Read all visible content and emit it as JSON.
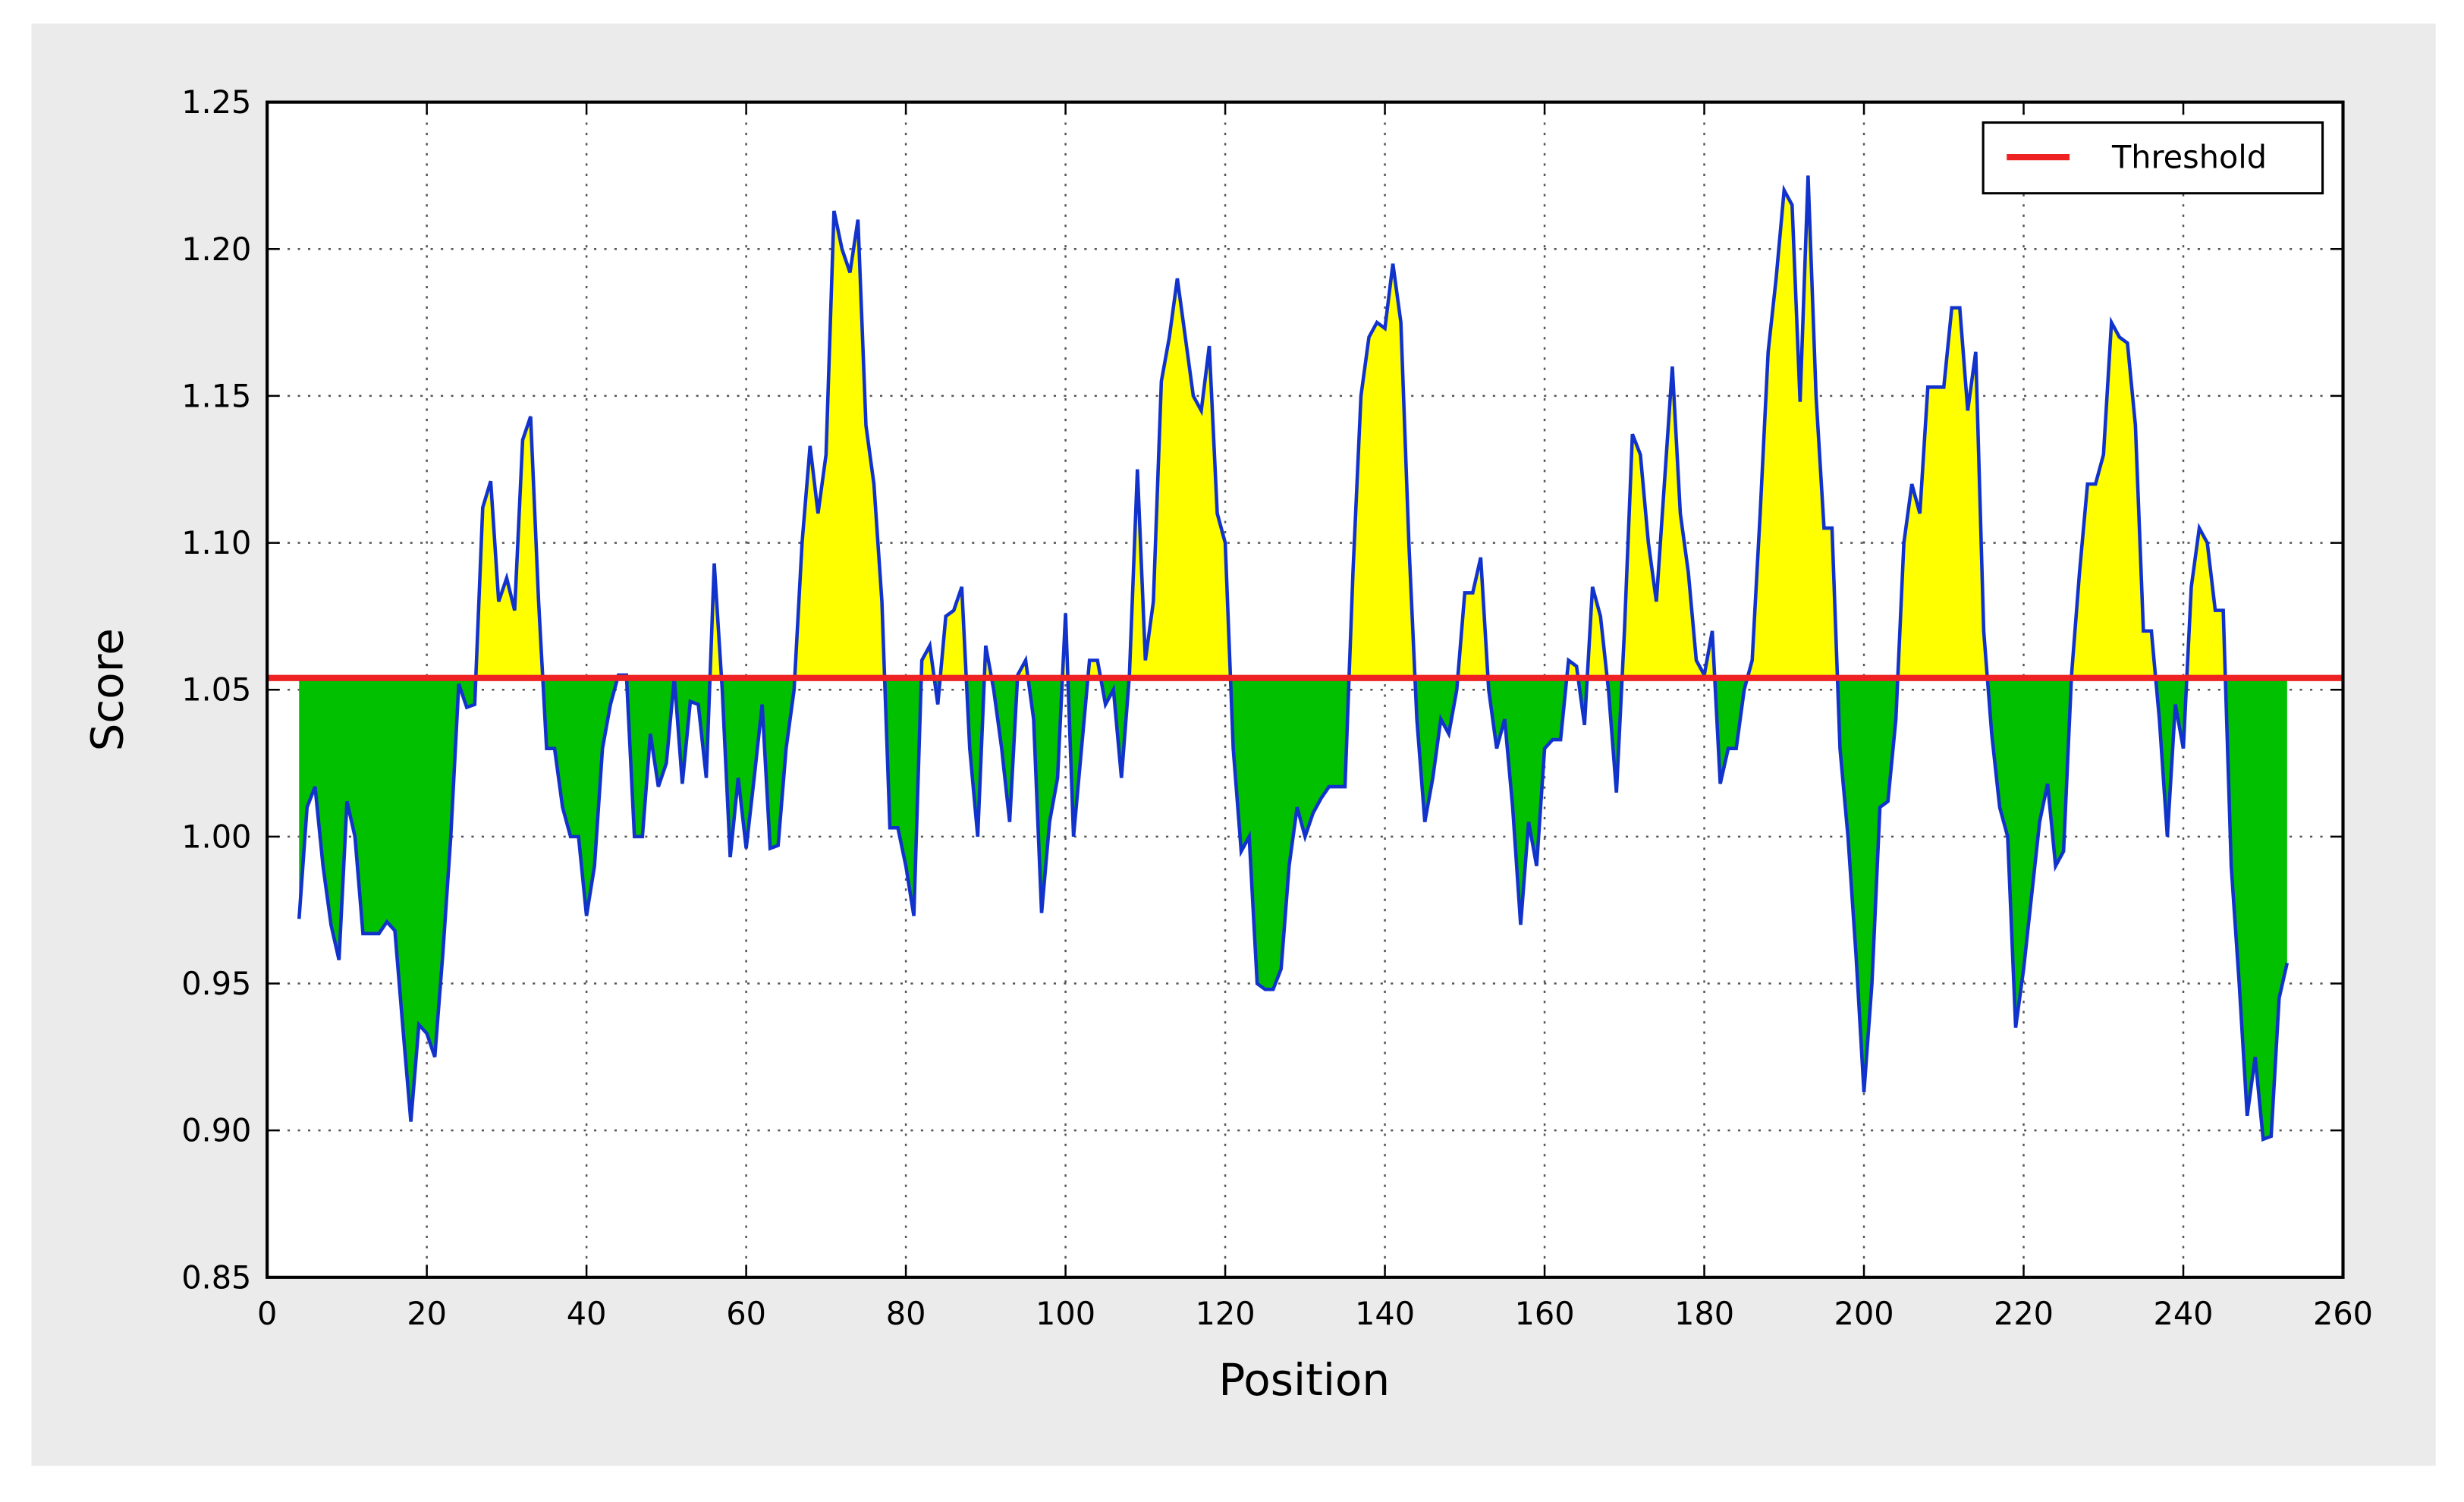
{
  "chart_data": {
    "type": "line",
    "xlabel": "Position",
    "ylabel": "Score",
    "xlim": [
      0,
      260
    ],
    "xticks": [
      0,
      20,
      40,
      60,
      80,
      100,
      120,
      140,
      160,
      180,
      200,
      220,
      240,
      260
    ],
    "ylim": [
      0.85,
      1.25
    ],
    "yticks": [
      0.85,
      {
        "value": 0.9,
        "label": "0.90"
      },
      0.95,
      {
        "value": 1.0,
        "label": "1.00"
      },
      1.05,
      {
        "value": 1.1,
        "label": "1.10"
      },
      1.15,
      {
        "value": 1.2,
        "label": "1.20"
      },
      1.25
    ],
    "grid": true,
    "legend": "upper right",
    "threshold": {
      "name": "Threshold",
      "value": 1.054,
      "color": "#ee2222"
    },
    "above_color": "#ffff00",
    "below_color": "#00c000",
    "x": [
      4,
      5,
      6,
      7,
      8,
      9,
      10,
      11,
      12,
      13,
      14,
      15,
      16,
      17,
      18,
      19,
      20,
      21,
      22,
      23,
      24,
      25,
      26,
      27,
      28,
      29,
      30,
      31,
      32,
      33,
      34,
      35,
      36,
      37,
      38,
      39,
      40,
      41,
      42,
      43,
      44,
      45,
      46,
      47,
      48,
      49,
      50,
      51,
      52,
      53,
      54,
      55,
      56,
      57,
      58,
      59,
      60,
      61,
      62,
      63,
      64,
      65,
      66,
      67,
      68,
      69,
      70,
      71,
      72,
      73,
      74,
      75,
      76,
      77,
      78,
      79,
      80,
      81,
      82,
      83,
      84,
      85,
      86,
      87,
      88,
      89,
      90,
      91,
      92,
      93,
      94,
      95,
      96,
      97,
      98,
      99,
      100,
      101,
      102,
      103,
      104,
      105,
      106,
      107,
      108,
      109,
      110,
      111,
      112,
      113,
      114,
      115,
      116,
      117,
      118,
      119,
      120,
      121,
      122,
      123,
      124,
      125,
      126,
      127,
      128,
      129,
      130,
      131,
      132,
      133,
      134,
      135,
      136,
      137,
      138,
      139,
      140,
      141,
      142,
      143,
      144,
      145,
      146,
      147,
      148,
      149,
      150,
      151,
      152,
      153,
      154,
      155,
      156,
      157,
      158,
      159,
      160,
      161,
      162,
      163,
      164,
      165,
      166,
      167,
      168,
      169,
      170,
      171,
      172,
      173,
      174,
      175,
      176,
      177,
      178,
      179,
      180,
      181,
      182,
      183,
      184,
      185,
      186,
      187,
      188,
      189,
      190,
      191,
      192,
      193,
      194,
      195,
      196,
      197,
      198,
      199,
      200,
      201,
      202,
      203,
      204,
      205,
      206,
      207,
      208,
      209,
      210,
      211,
      212,
      213,
      214,
      215,
      216,
      217,
      218,
      219,
      220,
      221,
      222,
      223,
      224,
      225,
      226,
      227,
      228,
      229,
      230,
      231,
      232,
      233,
      234,
      235,
      236,
      237,
      238,
      239,
      240,
      241,
      242,
      243,
      244,
      245,
      246,
      247,
      248,
      249,
      250,
      251,
      252,
      253
    ],
    "series": [
      {
        "name": "Score",
        "color": "#1133cc",
        "values": [
          0.972,
          1.01,
          1.017,
          0.99,
          0.97,
          0.958,
          1.012,
          1.0,
          0.967,
          0.967,
          0.967,
          0.971,
          0.968,
          0.935,
          0.903,
          0.936,
          0.933,
          0.925,
          0.96,
          1.0,
          1.052,
          1.044,
          1.045,
          1.112,
          1.121,
          1.08,
          1.088,
          1.077,
          1.135,
          1.143,
          1.08,
          1.03,
          1.03,
          1.01,
          1.0,
          1.0,
          0.973,
          0.99,
          1.03,
          1.045,
          1.055,
          1.055,
          1.0,
          1.0,
          1.035,
          1.017,
          1.025,
          1.054,
          1.018,
          1.046,
          1.045,
          1.02,
          1.093,
          1.05,
          0.993,
          1.02,
          0.996,
          1.02,
          1.045,
          0.996,
          0.997,
          1.03,
          1.05,
          1.1,
          1.133,
          1.11,
          1.13,
          1.213,
          1.2,
          1.192,
          1.21,
          1.14,
          1.12,
          1.08,
          1.003,
          1.003,
          0.99,
          0.973,
          1.06,
          1.065,
          1.045,
          1.075,
          1.077,
          1.085,
          1.03,
          1.0,
          1.065,
          1.05,
          1.03,
          1.005,
          1.055,
          1.06,
          1.04,
          0.974,
          1.005,
          1.02,
          1.076,
          1.0,
          1.03,
          1.06,
          1.06,
          1.045,
          1.05,
          1.02,
          1.055,
          1.125,
          1.06,
          1.08,
          1.155,
          1.17,
          1.19,
          1.17,
          1.15,
          1.145,
          1.167,
          1.11,
          1.1,
          1.03,
          0.995,
          1.0,
          0.95,
          0.948,
          0.948,
          0.955,
          0.99,
          1.01,
          1.0,
          1.008,
          1.013,
          1.017,
          1.017,
          1.017,
          1.09,
          1.15,
          1.17,
          1.175,
          1.173,
          1.195,
          1.175,
          1.1,
          1.04,
          1.005,
          1.02,
          1.04,
          1.035,
          1.05,
          1.083,
          1.083,
          1.095,
          1.05,
          1.03,
          1.04,
          1.01,
          0.97,
          1.005,
          0.99,
          1.03,
          1.033,
          1.033,
          1.06,
          1.058,
          1.038,
          1.085,
          1.075,
          1.05,
          1.015,
          1.07,
          1.137,
          1.13,
          1.1,
          1.08,
          1.12,
          1.16,
          1.11,
          1.09,
          1.06,
          1.055,
          1.07,
          1.018,
          1.03,
          1.03,
          1.05,
          1.06,
          1.11,
          1.165,
          1.19,
          1.22,
          1.215,
          1.148,
          1.225,
          1.15,
          1.105,
          1.105,
          1.03,
          1.0,
          0.96,
          0.913,
          0.95,
          1.01,
          1.012,
          1.04,
          1.1,
          1.12,
          1.11,
          1.153,
          1.153,
          1.153,
          1.18,
          1.18,
          1.145,
          1.165,
          1.07,
          1.035,
          1.01,
          1.0,
          0.935,
          0.955,
          0.98,
          1.005,
          1.018,
          0.99,
          0.995,
          1.055,
          1.09,
          1.12,
          1.12,
          1.13,
          1.175,
          1.17,
          1.168,
          1.14,
          1.07,
          1.07,
          1.04,
          1.0,
          1.045,
          1.03,
          1.085,
          1.105,
          1.1,
          1.077,
          1.077,
          0.99,
          0.95,
          0.905,
          0.925,
          0.897,
          0.898,
          0.945,
          0.957
        ]
      }
    ]
  }
}
